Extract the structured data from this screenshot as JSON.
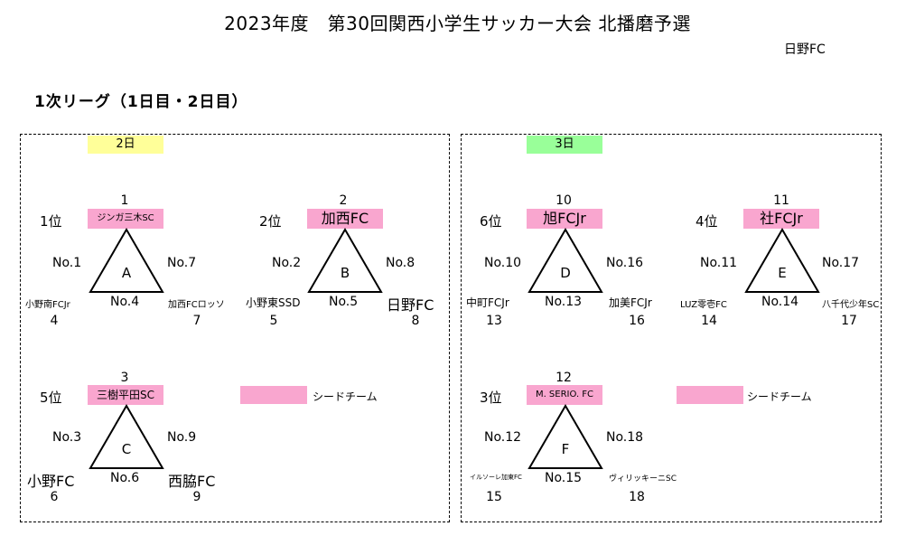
{
  "title": "2023年度　第30回関西小学生サッカー大会 北播磨予選",
  "org": "日野FC",
  "subtitle": "1次リーグ（1日目・2日目）",
  "legend_label": "シードチーム",
  "colors": {
    "seed": "#f9a6cf",
    "day2": "#ffff99",
    "day3": "#99ff99"
  },
  "days": [
    {
      "label": "2日",
      "color": "#ffff99"
    },
    {
      "label": "3日",
      "color": "#99ff99"
    }
  ],
  "groups": [
    {
      "letter": "A",
      "seed_num": "1",
      "rank": "1位",
      "seed_team": "ジンガ三木SC",
      "left_match": "No.1",
      "right_match": "No.7",
      "bottom_match": "No.4",
      "left_team": "小野南FCJr",
      "right_team": "加西FCロッソ",
      "left_num": "4",
      "right_num": "7"
    },
    {
      "letter": "B",
      "seed_num": "2",
      "rank": "2位",
      "seed_team": "加西FC",
      "left_match": "No.2",
      "right_match": "No.8",
      "bottom_match": "No.5",
      "left_team": "小野東SSD",
      "right_team": "日野FC",
      "left_num": "5",
      "right_num": "8"
    },
    {
      "letter": "C",
      "seed_num": "3",
      "rank": "5位",
      "seed_team": "三樹平田SC",
      "left_match": "No.3",
      "right_match": "No.9",
      "bottom_match": "No.6",
      "left_team": "小野FC",
      "right_team": "西脇FC",
      "left_num": "6",
      "right_num": "9"
    },
    {
      "letter": "D",
      "seed_num": "10",
      "rank": "6位",
      "seed_team": "旭FCJr",
      "left_match": "No.10",
      "right_match": "No.16",
      "bottom_match": "No.13",
      "left_team": "中町FCJr",
      "right_team": "加美FCJr",
      "left_num": "13",
      "right_num": "16"
    },
    {
      "letter": "E",
      "seed_num": "11",
      "rank": "4位",
      "seed_team": "社FCJr",
      "left_match": "No.11",
      "right_match": "No.17",
      "bottom_match": "No.14",
      "left_team": "LUZ零壱FC",
      "right_team": "八千代少年SC",
      "left_num": "14",
      "right_num": "17"
    },
    {
      "letter": "F",
      "seed_num": "12",
      "rank": "3位",
      "seed_team": "M. SERIO. FC",
      "left_match": "No.12",
      "right_match": "No.18",
      "bottom_match": "No.15",
      "left_team": "イルソーレ加東FC",
      "right_team": "ヴィリッキーニSC",
      "left_num": "15",
      "right_num": "18"
    }
  ]
}
